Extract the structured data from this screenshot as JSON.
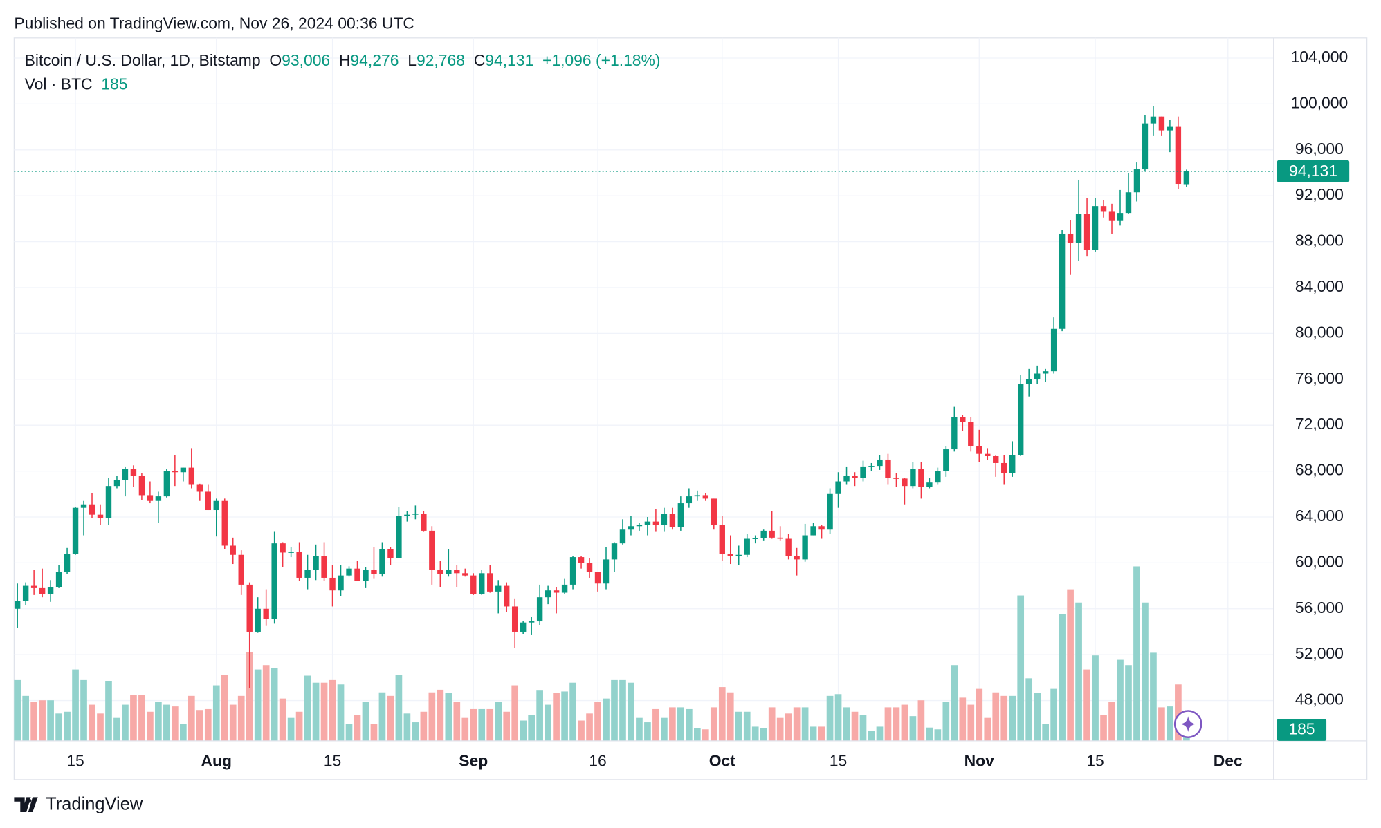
{
  "header": {
    "published": "Published on TradingView.com, Nov 26, 2024 00:36 UTC"
  },
  "footer": {
    "brand": "TradingView"
  },
  "chart_data": {
    "type": "candlestick",
    "legend": {
      "symbol": "Bitcoin / U.S. Dollar, 1D, Bitstamp",
      "o_label": "O",
      "open": "93,006",
      "h_label": "H",
      "high": "94,276",
      "l_label": "L",
      "low": "92,768",
      "c_label": "C",
      "close": "94,131",
      "change": "+1,096 (+1.18%)",
      "volume_label": "Vol · BTC"
    },
    "up_color": "#089981",
    "down_color": "#f23645",
    "volume_up_color": "#92d2cc",
    "volume_down_color": "#f7a9a7",
    "grid": true,
    "ylim": [
      44490,
      105760
    ],
    "yticks": [
      {
        "value": 48000,
        "label": "48,000"
      },
      {
        "value": 52000,
        "label": "52,000"
      },
      {
        "value": 56000,
        "label": "56,000"
      },
      {
        "value": 60000,
        "label": "60,000"
      },
      {
        "value": 64000,
        "label": "64,000"
      },
      {
        "value": 68000,
        "label": "68,000"
      },
      {
        "value": 72000,
        "label": "72,000"
      },
      {
        "value": 76000,
        "label": "76,000"
      },
      {
        "value": 80000,
        "label": "80,000"
      },
      {
        "value": 84000,
        "label": "84,000"
      },
      {
        "value": 88000,
        "label": "88,000"
      },
      {
        "value": 92000,
        "label": "92,000"
      },
      {
        "value": 96000,
        "label": "96,000"
      },
      {
        "value": 100000,
        "label": "100,000"
      },
      {
        "value": 104000,
        "label": "104,000"
      }
    ],
    "xlim": [
      -0.4,
      151.5
    ],
    "xticks": [
      {
        "value": 7,
        "label": "15"
      },
      {
        "value": 24,
        "label": "Aug"
      },
      {
        "value": 38,
        "label": "15"
      },
      {
        "value": 55,
        "label": "Sep"
      },
      {
        "value": 70,
        "label": "16"
      },
      {
        "value": 85,
        "label": "Oct"
      },
      {
        "value": 99,
        "label": "15"
      },
      {
        "value": 116,
        "label": "Nov"
      },
      {
        "value": 130,
        "label": "15"
      },
      {
        "value": 146,
        "label": "Dec"
      }
    ],
    "volume_lim": [
      0,
      31920
    ],
    "last_price": {
      "value": 94131,
      "label": "94,131"
    },
    "ohlc": [
      [
        56000,
        58200,
        54300,
        56700
      ],
      [
        56700,
        58300,
        56300,
        58000
      ],
      [
        58000,
        59400,
        57200,
        57800
      ],
      [
        57800,
        59500,
        57000,
        57300
      ],
      [
        57300,
        58500,
        56600,
        57900
      ],
      [
        57900,
        59800,
        57800,
        59200
      ],
      [
        59200,
        61300,
        59000,
        60800
      ],
      [
        60800,
        64900,
        60700,
        64800
      ],
      [
        64800,
        65400,
        62400,
        65100
      ],
      [
        65100,
        66100,
        63900,
        64200
      ],
      [
        64200,
        65100,
        63300,
        63900
      ],
      [
        63900,
        67400,
        63300,
        66700
      ],
      [
        66700,
        67600,
        66500,
        67200
      ],
      [
        67200,
        68400,
        65800,
        68200
      ],
      [
        68200,
        68500,
        66600,
        67600
      ],
      [
        67600,
        67800,
        65500,
        65900
      ],
      [
        65900,
        67100,
        65200,
        65400
      ],
      [
        65400,
        66200,
        63500,
        65800
      ],
      [
        65800,
        68200,
        65700,
        68000
      ],
      [
        68000,
        69400,
        66700,
        67900
      ],
      [
        67900,
        68300,
        67100,
        68300
      ],
      [
        68300,
        70000,
        66500,
        66800
      ],
      [
        66800,
        66900,
        65400,
        66200
      ],
      [
        66200,
        66800,
        64600,
        64600
      ],
      [
        64600,
        65600,
        62300,
        65400
      ],
      [
        65400,
        65600,
        61200,
        61500
      ],
      [
        61500,
        62200,
        59900,
        60700
      ],
      [
        60700,
        61100,
        57200,
        58100
      ],
      [
        58100,
        58300,
        49100,
        54000
      ],
      [
        54000,
        57000,
        53900,
        56000
      ],
      [
        56000,
        57700,
        54500,
        55100
      ],
      [
        55100,
        62700,
        54700,
        61700
      ],
      [
        61700,
        61800,
        59600,
        60900
      ],
      [
        60900,
        61400,
        60500,
        60950
      ],
      [
        60950,
        61800,
        58400,
        58700
      ],
      [
        58700,
        60700,
        57700,
        59400
      ],
      [
        59400,
        61600,
        58500,
        60600
      ],
      [
        60600,
        61800,
        58400,
        58700
      ],
      [
        58700,
        59800,
        56200,
        57600
      ],
      [
        57600,
        59800,
        57100,
        58900
      ],
      [
        58900,
        59700,
        58800,
        59500
      ],
      [
        59500,
        60200,
        58400,
        58400
      ],
      [
        58400,
        59600,
        57800,
        59400
      ],
      [
        59400,
        61400,
        58600,
        59000
      ],
      [
        59000,
        61800,
        58800,
        61200
      ],
      [
        61200,
        61400,
        59800,
        60400
      ],
      [
        60400,
        64900,
        60400,
        64100
      ],
      [
        64100,
        64500,
        63600,
        64200
      ],
      [
        64200,
        65000,
        63800,
        64300
      ],
      [
        64300,
        64500,
        62700,
        62800
      ],
      [
        62800,
        63200,
        58100,
        59400
      ],
      [
        59400,
        60200,
        57900,
        59000
      ],
      [
        59000,
        61200,
        58800,
        59400
      ],
      [
        59400,
        59800,
        57900,
        59100
      ],
      [
        59100,
        59500,
        58800,
        58900
      ],
      [
        58900,
        59100,
        57200,
        57300
      ],
      [
        57300,
        59400,
        57200,
        59100
      ],
      [
        59100,
        59800,
        57400,
        57500
      ],
      [
        57500,
        58500,
        55600,
        58000
      ],
      [
        58000,
        58300,
        55700,
        56200
      ],
      [
        56200,
        56900,
        52600,
        54000
      ],
      [
        54000,
        54900,
        53800,
        54800
      ],
      [
        54800,
        55300,
        53700,
        54900
      ],
      [
        54900,
        58100,
        54600,
        57000
      ],
      [
        57000,
        58000,
        56400,
        57600
      ],
      [
        57600,
        57900,
        55600,
        57400
      ],
      [
        57400,
        58600,
        57300,
        58100
      ],
      [
        58100,
        60600,
        57700,
        60500
      ],
      [
        60500,
        60600,
        59500,
        60000
      ],
      [
        60000,
        60400,
        58700,
        59200
      ],
      [
        59200,
        59200,
        57500,
        58200
      ],
      [
        58200,
        61400,
        57700,
        60300
      ],
      [
        60300,
        61800,
        59200,
        61700
      ],
      [
        61700,
        63800,
        61600,
        62900
      ],
      [
        62900,
        64100,
        62400,
        63200
      ],
      [
        63200,
        63500,
        62800,
        63300
      ],
      [
        63300,
        64000,
        62400,
        63600
      ],
      [
        63600,
        64700,
        62700,
        63300
      ],
      [
        63300,
        64800,
        62700,
        64300
      ],
      [
        64300,
        64800,
        62900,
        63100
      ],
      [
        63100,
        65800,
        62800,
        65200
      ],
      [
        65200,
        66500,
        64800,
        65800
      ],
      [
        65800,
        66300,
        65400,
        65900
      ],
      [
        65900,
        66100,
        65400,
        65600
      ],
      [
        65600,
        65600,
        62900,
        63300
      ],
      [
        63300,
        64100,
        60200,
        60800
      ],
      [
        60800,
        62400,
        59900,
        60600
      ],
      [
        60600,
        61500,
        59800,
        60700
      ],
      [
        60700,
        62500,
        60500,
        62100
      ],
      [
        62100,
        62400,
        61700,
        62150
      ],
      [
        62150,
        62900,
        61900,
        62800
      ],
      [
        62800,
        64500,
        62100,
        62200
      ],
      [
        62200,
        63200,
        61900,
        62100
      ],
      [
        62100,
        62500,
        60300,
        60600
      ],
      [
        60600,
        61300,
        58900,
        60300
      ],
      [
        60300,
        63400,
        60100,
        62400
      ],
      [
        62400,
        63500,
        62400,
        63200
      ],
      [
        63200,
        63300,
        62100,
        62900
      ],
      [
        62900,
        66500,
        62500,
        66000
      ],
      [
        66000,
        67900,
        64800,
        67100
      ],
      [
        67100,
        68400,
        66800,
        67600
      ],
      [
        67600,
        67900,
        66700,
        67400
      ],
      [
        67400,
        68900,
        67100,
        68400
      ],
      [
        68400,
        68700,
        68000,
        68450
      ],
      [
        68450,
        69400,
        68100,
        69000
      ],
      [
        69000,
        69500,
        66800,
        67400
      ],
      [
        67400,
        67800,
        66600,
        67350
      ],
      [
        67350,
        67400,
        65100,
        66700
      ],
      [
        66700,
        68800,
        66500,
        68200
      ],
      [
        68200,
        68800,
        65600,
        66600
      ],
      [
        66600,
        67400,
        66500,
        67000
      ],
      [
        67000,
        68300,
        66800,
        68000
      ],
      [
        68000,
        70200,
        67500,
        69900
      ],
      [
        69900,
        73600,
        69700,
        72700
      ],
      [
        72700,
        72900,
        71500,
        72300
      ],
      [
        72300,
        72700,
        69700,
        70200
      ],
      [
        70200,
        71600,
        68800,
        69500
      ],
      [
        69500,
        70000,
        69000,
        69300
      ],
      [
        69300,
        69400,
        67500,
        68700
      ],
      [
        68700,
        69400,
        66800,
        67800
      ],
      [
        67800,
        70600,
        67500,
        69400
      ],
      [
        69400,
        76400,
        69300,
        75600
      ],
      [
        75600,
        76900,
        74500,
        76000
      ],
      [
        76000,
        77200,
        75600,
        76500
      ],
      [
        76500,
        76900,
        75800,
        76700
      ],
      [
        76700,
        81400,
        76500,
        80400
      ],
      [
        80400,
        89000,
        80200,
        88700
      ],
      [
        88700,
        89900,
        85100,
        87900
      ],
      [
        87900,
        93400,
        86300,
        90400
      ],
      [
        90400,
        91800,
        86700,
        87300
      ],
      [
        87300,
        91800,
        87100,
        91100
      ],
      [
        91100,
        91600,
        90100,
        90600
      ],
      [
        90600,
        91300,
        88700,
        89800
      ],
      [
        89800,
        92500,
        89400,
        90500
      ],
      [
        90500,
        94000,
        90400,
        92300
      ],
      [
        92300,
        94900,
        91500,
        94300
      ],
      [
        94300,
        99000,
        94100,
        98300
      ],
      [
        98300,
        99800,
        97200,
        98900
      ],
      [
        98900,
        98900,
        97200,
        97700
      ],
      [
        97700,
        98600,
        95800,
        98000
      ],
      [
        98000,
        98900,
        92600,
        93035
      ],
      [
        93006,
        94276,
        92768,
        94131
      ]
    ],
    "volume": [
      2760,
      2040,
      1760,
      1840,
      1840,
      1240,
      1320,
      3240,
      2760,
      1640,
      1240,
      2720,
      1040,
      1640,
      2080,
      2080,
      1320,
      1760,
      1640,
      1560,
      760,
      2040,
      1400,
      1440,
      2520,
      3000,
      1640,
      2040,
      4040,
      3240,
      3440,
      3320,
      1920,
      1040,
      1320,
      2960,
      2640,
      2640,
      2760,
      2560,
      760,
      1160,
      1760,
      760,
      2200,
      2040,
      3000,
      1240,
      840,
      1320,
      2200,
      2320,
      2160,
      1760,
      1040,
      1440,
      1440,
      1440,
      1760,
      1320,
      2520,
      920,
      1160,
      2280,
      1640,
      2160,
      2240,
      2640,
      920,
      1240,
      1760,
      1920,
      2760,
      2760,
      2640,
      1040,
      840,
      1440,
      1040,
      1520,
      1520,
      1440,
      560,
      520,
      1520,
      2440,
      2200,
      1320,
      1320,
      640,
      560,
      1520,
      1040,
      1240,
      1520,
      1520,
      640,
      640,
      2040,
      2120,
      1520,
      1320,
      1160,
      440,
      640,
      1520,
      1520,
      1640,
      1120,
      1840,
      600,
      520,
      1760,
      3440,
      1960,
      1640,
      2360,
      1040,
      2200,
      2040,
      2040,
      6600,
      2840,
      2160,
      760,
      2360,
      5760,
      6880,
      6280,
      3240,
      3880,
      1160,
      1760,
      3680,
      3440,
      7920,
      6280,
      4000,
      1520,
      1560,
      2560,
      185
    ]
  }
}
